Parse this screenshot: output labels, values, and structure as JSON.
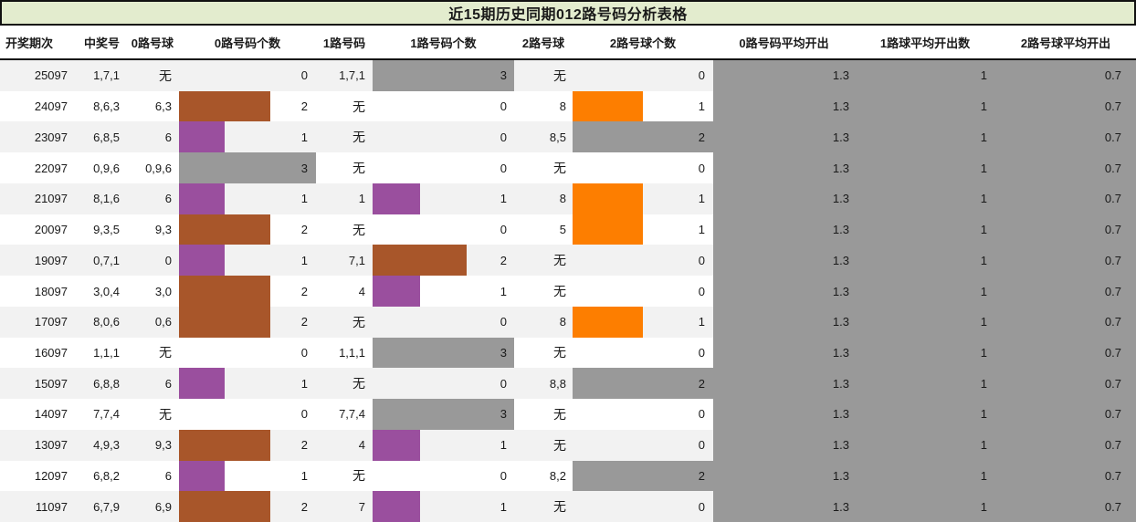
{
  "chart_data": {
    "type": "table",
    "title": "近15期历史同期012路号码分析表格",
    "columns": [
      {
        "key": "period",
        "label": "开奖期次"
      },
      {
        "key": "win",
        "label": "中奖号"
      },
      {
        "key": "r0_balls",
        "label": "0路号球"
      },
      {
        "key": "r0_count",
        "label": "0路号码个数"
      },
      {
        "key": "r1_nums",
        "label": "1路号码"
      },
      {
        "key": "r1_count",
        "label": "1路号码个数"
      },
      {
        "key": "r2_balls",
        "label": "2路号球"
      },
      {
        "key": "r2_count",
        "label": "2路号球个数"
      },
      {
        "key": "avg0",
        "label": "0路号码平均开出"
      },
      {
        "key": "avg1",
        "label": "1路球平均开出数"
      },
      {
        "key": "avg2",
        "label": "2路号球平均开出"
      }
    ],
    "none_text": "无",
    "bar_max": {
      "r0_count": 3,
      "r1_count": 3,
      "r2_count": 2
    },
    "bar_colors": {
      "r0_count": {
        "1": "#9a4f9e",
        "2": "#a8562a",
        "3": "#999999"
      },
      "r1_count": {
        "1": "#9a4f9e",
        "2": "#a8562a",
        "3": "#999999"
      },
      "r2_count": {
        "1": "#fd7e00",
        "2": "#999999"
      }
    },
    "rows": [
      {
        "period": "25097",
        "win": "1,7,1",
        "r0_balls": "无",
        "r0_count": 0,
        "r1_nums": "1,7,1",
        "r1_count": 3,
        "r2_balls": "无",
        "r2_count": 0,
        "avg0": "1.3",
        "avg1": "1",
        "avg2": "0.7"
      },
      {
        "period": "24097",
        "win": "8,6,3",
        "r0_balls": "6,3",
        "r0_count": 2,
        "r1_nums": "无",
        "r1_count": 0,
        "r2_balls": "8",
        "r2_count": 1,
        "avg0": "1.3",
        "avg1": "1",
        "avg2": "0.7"
      },
      {
        "period": "23097",
        "win": "6,8,5",
        "r0_balls": "6",
        "r0_count": 1,
        "r1_nums": "无",
        "r1_count": 0,
        "r2_balls": "8,5",
        "r2_count": 2,
        "avg0": "1.3",
        "avg1": "1",
        "avg2": "0.7"
      },
      {
        "period": "22097",
        "win": "0,9,6",
        "r0_balls": "0,9,6",
        "r0_count": 3,
        "r1_nums": "无",
        "r1_count": 0,
        "r2_balls": "无",
        "r2_count": 0,
        "avg0": "1.3",
        "avg1": "1",
        "avg2": "0.7"
      },
      {
        "period": "21097",
        "win": "8,1,6",
        "r0_balls": "6",
        "r0_count": 1,
        "r1_nums": "1",
        "r1_count": 1,
        "r2_balls": "8",
        "r2_count": 1,
        "avg0": "1.3",
        "avg1": "1",
        "avg2": "0.7"
      },
      {
        "period": "20097",
        "win": "9,3,5",
        "r0_balls": "9,3",
        "r0_count": 2,
        "r1_nums": "无",
        "r1_count": 0,
        "r2_balls": "5",
        "r2_count": 1,
        "avg0": "1.3",
        "avg1": "1",
        "avg2": "0.7"
      },
      {
        "period": "19097",
        "win": "0,7,1",
        "r0_balls": "0",
        "r0_count": 1,
        "r1_nums": "7,1",
        "r1_count": 2,
        "r2_balls": "无",
        "r2_count": 0,
        "avg0": "1.3",
        "avg1": "1",
        "avg2": "0.7"
      },
      {
        "period": "18097",
        "win": "3,0,4",
        "r0_balls": "3,0",
        "r0_count": 2,
        "r1_nums": "4",
        "r1_count": 1,
        "r2_balls": "无",
        "r2_count": 0,
        "avg0": "1.3",
        "avg1": "1",
        "avg2": "0.7"
      },
      {
        "period": "17097",
        "win": "8,0,6",
        "r0_balls": "0,6",
        "r0_count": 2,
        "r1_nums": "无",
        "r1_count": 0,
        "r2_balls": "8",
        "r2_count": 1,
        "avg0": "1.3",
        "avg1": "1",
        "avg2": "0.7"
      },
      {
        "period": "16097",
        "win": "1,1,1",
        "r0_balls": "无",
        "r0_count": 0,
        "r1_nums": "1,1,1",
        "r1_count": 3,
        "r2_balls": "无",
        "r2_count": 0,
        "avg0": "1.3",
        "avg1": "1",
        "avg2": "0.7"
      },
      {
        "period": "15097",
        "win": "6,8,8",
        "r0_balls": "6",
        "r0_count": 1,
        "r1_nums": "无",
        "r1_count": 0,
        "r2_balls": "8,8",
        "r2_count": 2,
        "avg0": "1.3",
        "avg1": "1",
        "avg2": "0.7"
      },
      {
        "period": "14097",
        "win": "7,7,4",
        "r0_balls": "无",
        "r0_count": 0,
        "r1_nums": "7,7,4",
        "r1_count": 3,
        "r2_balls": "无",
        "r2_count": 0,
        "avg0": "1.3",
        "avg1": "1",
        "avg2": "0.7"
      },
      {
        "period": "13097",
        "win": "4,9,3",
        "r0_balls": "9,3",
        "r0_count": 2,
        "r1_nums": "4",
        "r1_count": 1,
        "r2_balls": "无",
        "r2_count": 0,
        "avg0": "1.3",
        "avg1": "1",
        "avg2": "0.7"
      },
      {
        "period": "12097",
        "win": "6,8,2",
        "r0_balls": "6",
        "r0_count": 1,
        "r1_nums": "无",
        "r1_count": 0,
        "r2_balls": "8,2",
        "r2_count": 2,
        "avg0": "1.3",
        "avg1": "1",
        "avg2": "0.7"
      },
      {
        "period": "11097",
        "win": "6,7,9",
        "r0_balls": "6,9",
        "r0_count": 2,
        "r1_nums": "7",
        "r1_count": 1,
        "r2_balls": "无",
        "r2_count": 0,
        "avg0": "1.3",
        "avg1": "1",
        "avg2": "0.7"
      }
    ],
    "layout": {
      "grid": "off",
      "legend": "none",
      "row_stripe": true
    }
  },
  "colors": {
    "title_bg": "#e3ecce",
    "title_border": "#111111",
    "row_alt": "#f2f2f2",
    "avg_block_bg": "#999999",
    "bar_purple": "#9a4f9e",
    "bar_brown": "#a8562a",
    "bar_orange": "#fd7e00",
    "bar_gray": "#999999",
    "text": "#1a1a1a"
  }
}
